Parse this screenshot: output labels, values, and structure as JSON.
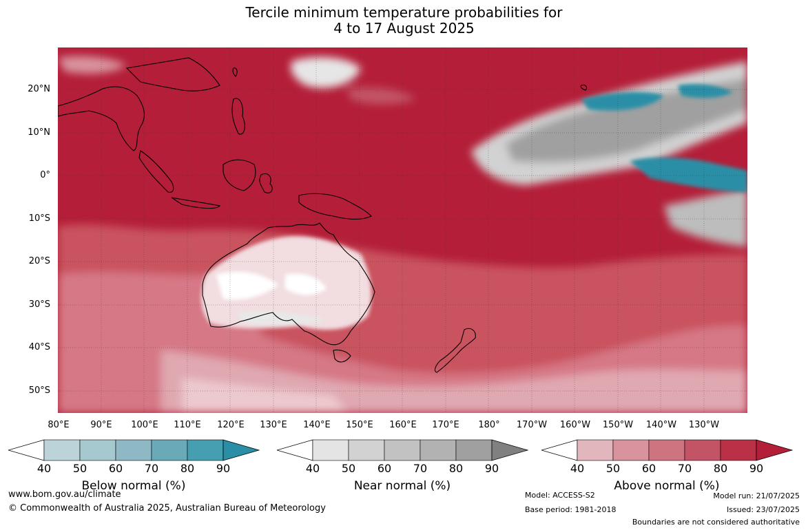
{
  "title": {
    "line1": "Tercile minimum temperature probabilities for",
    "line2": "4 to 17 August 2025"
  },
  "map": {
    "lat_labels": [
      "20°N",
      "10°N",
      "0°",
      "10°S",
      "20°S",
      "30°S",
      "40°S",
      "50°S"
    ],
    "lon_labels": [
      "80°E",
      "90°E",
      "100°E",
      "110°E",
      "120°E",
      "130°E",
      "140°E",
      "150°E",
      "160°E",
      "170°E",
      "180°",
      "170°W",
      "160°W",
      "150°W",
      "140°W",
      "130°W"
    ],
    "colors": {
      "above_dominant": "#b41e38",
      "ocean_mid": "#c23a52",
      "near_grey": "#9a9a9a",
      "below_teal": "#2a8fa6",
      "coast": "#000000"
    }
  },
  "legends": [
    {
      "title": "Below normal (%)",
      "ticks": [
        "40",
        "50",
        "60",
        "70",
        "80",
        "90"
      ],
      "colors": [
        "#ffffff",
        "#bcd3d9",
        "#a6c8cf",
        "#8db8c4",
        "#6aa9b8",
        "#469fb1",
        "#2a8fa6"
      ]
    },
    {
      "title": "Near normal (%)",
      "ticks": [
        "40",
        "50",
        "60",
        "70",
        "80",
        "90"
      ],
      "colors": [
        "#ffffff",
        "#e4e4e4",
        "#d2d2d2",
        "#c2c2c2",
        "#b2b2b2",
        "#a0a0a0",
        "#808080"
      ]
    },
    {
      "title": "Above normal (%)",
      "ticks": [
        "40",
        "50",
        "60",
        "70",
        "80",
        "90"
      ],
      "colors": [
        "#ffffff",
        "#e2b6bd",
        "#d8939e",
        "#cd7480",
        "#c25466",
        "#ba3047",
        "#b41e38"
      ]
    }
  ],
  "footer": {
    "url": "www.bom.gov.au/climate",
    "copyright": "© Commonwealth of Australia 2025, Australian Bureau of Meteorology",
    "model": "Model: ACCESS-S2",
    "base_period": "Base period: 1981-2018",
    "model_run": "Model run: 21/07/2025",
    "issued": "Issued: 23/07/2025",
    "boundaries": "Boundaries are not considered authoritative"
  }
}
